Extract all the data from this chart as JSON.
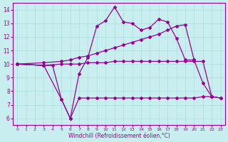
{
  "xlabel": "Windchill (Refroidissement éolien,°C)",
  "bg_color": "#c8eef0",
  "line_color": "#990099",
  "grid_color": "#aadddd",
  "xlim": [
    -0.5,
    23.5
  ],
  "ylim": [
    5.5,
    14.5
  ],
  "yticks": [
    6,
    7,
    8,
    9,
    10,
    11,
    12,
    13,
    14
  ],
  "xticks": [
    0,
    1,
    2,
    3,
    4,
    5,
    6,
    7,
    8,
    9,
    10,
    11,
    12,
    13,
    14,
    15,
    16,
    17,
    18,
    19,
    20,
    21,
    22,
    23
  ],
  "curve_top_x": [
    0,
    3,
    4,
    5,
    6,
    7,
    8,
    9,
    10,
    11,
    12,
    13,
    14,
    15,
    16,
    17,
    18,
    19,
    20
  ],
  "curve_top_y": [
    10.0,
    9.9,
    9.9,
    7.4,
    6.0,
    9.3,
    10.5,
    12.8,
    13.2,
    14.2,
    13.1,
    13.0,
    12.5,
    12.7,
    13.3,
    13.1,
    11.9,
    10.3,
    10.3
  ],
  "curve_upper_x": [
    0,
    3,
    5,
    6,
    7,
    8,
    9,
    10,
    11,
    12,
    13,
    14,
    15,
    16,
    17,
    18,
    19,
    20,
    21,
    22
  ],
  "curve_upper_y": [
    10.0,
    10.1,
    10.2,
    10.3,
    10.5,
    10.6,
    10.8,
    11.0,
    11.2,
    11.4,
    11.6,
    11.8,
    12.0,
    12.2,
    12.5,
    12.8,
    12.9,
    10.3,
    8.6,
    7.6
  ],
  "curve_lower_x": [
    0,
    3,
    5,
    6,
    7,
    8,
    9,
    10,
    11,
    12,
    13,
    14,
    15,
    16,
    17,
    18,
    19,
    20,
    21,
    22,
    23
  ],
  "curve_lower_y": [
    10.0,
    9.9,
    10.0,
    10.0,
    10.0,
    10.1,
    10.1,
    10.1,
    10.2,
    10.2,
    10.2,
    10.2,
    10.2,
    10.2,
    10.2,
    10.2,
    10.2,
    10.2,
    10.2,
    7.6,
    7.5
  ],
  "curve_bot_x": [
    0,
    3,
    5,
    6,
    7,
    8,
    9,
    10,
    11,
    12,
    13,
    14,
    15,
    16,
    17,
    18,
    19,
    20,
    21,
    22,
    23
  ],
  "curve_bot_y": [
    10.0,
    9.9,
    7.4,
    6.0,
    7.5,
    7.5,
    7.5,
    7.5,
    7.5,
    7.5,
    7.5,
    7.5,
    7.5,
    7.5,
    7.5,
    7.5,
    7.5,
    7.5,
    7.6,
    7.6,
    7.5
  ]
}
